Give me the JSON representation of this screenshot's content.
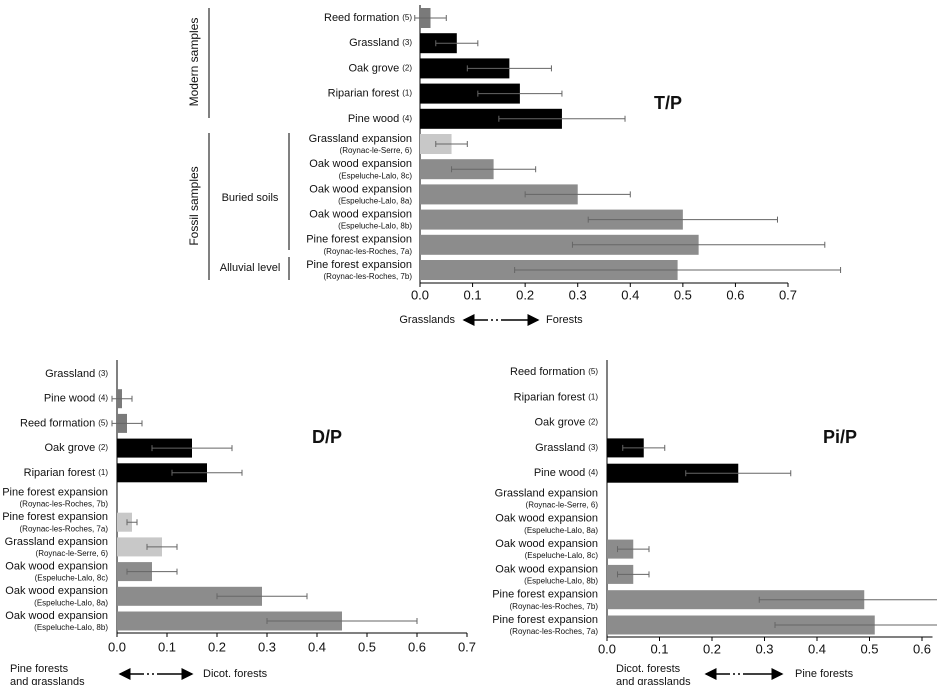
{
  "chart_data": [
    {
      "type": "bar",
      "orientation": "horizontal",
      "title": "T/P",
      "categories": [
        "Reed formation",
        "Grassland",
        "Oak grove",
        "Riparian forest",
        "Pine wood",
        "Grassland expansion",
        "Oak wood expansion",
        "Oak wood expansion",
        "Oak wood expansion",
        "Pine forest expansion",
        "Pine forest expansion"
      ],
      "category_notes": [
        "(5)",
        "(3)",
        "(2)",
        "(1)",
        "(4)",
        "(Roynac-le-Serre, 6)",
        "(Espeluche-Lalo, 8c)",
        "(Espeluche-Lalo, 8a)",
        "(Espeluche-Lalo, 8b)",
        "(Roynac-les-Roches, 7a)",
        "(Roynac-les-Roches, 7b)"
      ],
      "values": [
        0.02,
        0.07,
        0.17,
        0.19,
        0.27,
        0.06,
        0.14,
        0.3,
        0.5,
        0.53,
        0.49
      ],
      "errors": [
        0.03,
        0.04,
        0.08,
        0.08,
        0.12,
        0.03,
        0.08,
        0.1,
        0.18,
        0.24,
        0.31
      ],
      "colors": [
        "#7a7a7a",
        "#000000",
        "#000000",
        "#000000",
        "#000000",
        "#c8c8c8",
        "#8c8c8c",
        "#8c8c8c",
        "#8c8c8c",
        "#8c8c8c",
        "#8c8c8c"
      ],
      "xlim": [
        0,
        0.7
      ],
      "xticks": [
        {
          "value": 0,
          "label": "0.0"
        },
        0.1,
        0.2,
        0.3,
        0.4,
        0.5,
        0.6,
        0.7
      ],
      "group_labels": [
        "Modern samples",
        "Fossil samples",
        "Buried soils",
        "Alluvial level"
      ],
      "axis_left_label": [
        "Grasslands"
      ],
      "axis_right_label": "Forests"
    },
    {
      "type": "bar",
      "orientation": "horizontal",
      "title": "D/P",
      "categories": [
        "Grassland",
        "Pine wood",
        "Reed formation",
        "Oak grove",
        "Riparian forest",
        "Pine forest expansion",
        "Pine forest expansion",
        "Grassland expansion",
        "Oak wood expansion",
        "Oak wood expansion",
        "Oak wood expansion"
      ],
      "category_notes": [
        "(3)",
        "(4)",
        "(5)",
        "(2)",
        "(1)",
        "(Roynac-les-Roches, 7b)",
        "(Roynac-les-Roches, 7a)",
        "(Roynac-le-Serre, 6)",
        "(Espeluche-Lalo, 8c)",
        "(Espeluche-Lalo, 8a)",
        "(Espeluche-Lalo, 8b)"
      ],
      "values": [
        0,
        0.01,
        0.02,
        0.15,
        0.18,
        0,
        0.03,
        0.09,
        0.07,
        0.29,
        0.45
      ],
      "errors": [
        null,
        0.02,
        0.03,
        0.08,
        0.07,
        null,
        0.01,
        0.03,
        0.05,
        0.09,
        0.15
      ],
      "colors": [
        "#7a7a7a",
        "#7a7a7a",
        "#7a7a7a",
        "#000000",
        "#000000",
        "#c8c8c8",
        "#c8c8c8",
        "#c8c8c8",
        "#8c8c8c",
        "#8c8c8c",
        "#8c8c8c"
      ],
      "xlim": [
        0,
        0.7
      ],
      "xticks": [
        {
          "value": 0,
          "label": "0.0"
        },
        0.1,
        0.2,
        0.3,
        0.4,
        0.5,
        0.6,
        0.7
      ],
      "axis_left_label": [
        "Pine forests",
        "and grasslands"
      ],
      "axis_right_label": "Dicot. forests"
    },
    {
      "type": "bar",
      "orientation": "horizontal",
      "title": "Pi/P",
      "categories": [
        "Reed formation",
        "Riparian forest",
        "Oak grove",
        "Grassland",
        "Pine wood",
        "Grassland expansion",
        "Oak wood expansion",
        "Oak wood expansion",
        "Oak wood expansion",
        "Pine forest expansion",
        "Pine forest expansion"
      ],
      "category_notes": [
        "(5)",
        "(1)",
        "(2)",
        "(3)",
        "(4)",
        "(Roynac-le-Serre, 6)",
        "(Espeluche-Lalo, 8a)",
        "(Espeluche-Lalo, 8c)",
        "(Espeluche-Lalo, 8b)",
        "(Roynac-les-Roches, 7b)",
        "(Roynac-les-Roches, 7a)"
      ],
      "values": [
        0,
        0,
        0,
        0.07,
        0.25,
        0,
        0,
        0.05,
        0.05,
        0.49,
        0.51
      ],
      "errors": [
        null,
        null,
        null,
        0.04,
        0.1,
        null,
        null,
        0.03,
        0.03,
        0.2,
        0.19
      ],
      "colors": [
        "#000000",
        "#000000",
        "#000000",
        "#000000",
        "#000000",
        "#c8c8c8",
        "#8c8c8c",
        "#8c8c8c",
        "#8c8c8c",
        "#8c8c8c",
        "#8c8c8c"
      ],
      "xlim": [
        0,
        0.62
      ],
      "xticks": [
        {
          "value": 0,
          "label": "0.0"
        },
        0.1,
        0.2,
        0.3,
        0.4,
        0.5,
        0.6
      ],
      "axis_left_label": [
        "Dicot. forests",
        "and grasslands"
      ],
      "axis_right_label": "Pine forests"
    }
  ]
}
